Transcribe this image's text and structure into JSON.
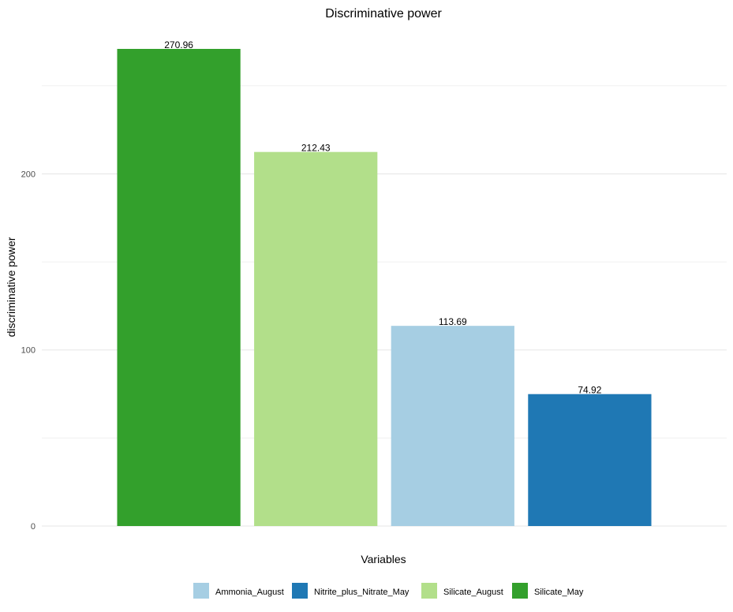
{
  "chart_data": {
    "type": "bar",
    "title": "Discriminative power",
    "xlabel": "Variables",
    "ylabel": "discriminative power",
    "categories": [
      "Silicate_May",
      "Silicate_August",
      "Ammonia_August",
      "Nitrite_plus_Nitrate_May"
    ],
    "values": [
      270.96,
      212.43,
      113.69,
      74.92
    ],
    "data_labels": [
      "270.96",
      "212.43",
      "113.69",
      "74.92"
    ],
    "colors": [
      "#33a02c",
      "#b2df8a",
      "#a6cee3",
      "#1f78b4"
    ],
    "ylim": [
      0,
      270.96
    ],
    "yticks": [
      0,
      100,
      200
    ],
    "ytick_labels": [
      "0",
      "100",
      "200"
    ],
    "show_x_tick_labels": false,
    "grid": true,
    "legend": {
      "position": "bottom",
      "entries": [
        {
          "label": "Ammonia_August",
          "color": "#a6cee3"
        },
        {
          "label": "Nitrite_plus_Nitrate_May",
          "color": "#1f78b4"
        },
        {
          "label": "Silicate_August",
          "color": "#b2df8a"
        },
        {
          "label": "Silicate_May",
          "color": "#33a02c"
        }
      ]
    }
  }
}
